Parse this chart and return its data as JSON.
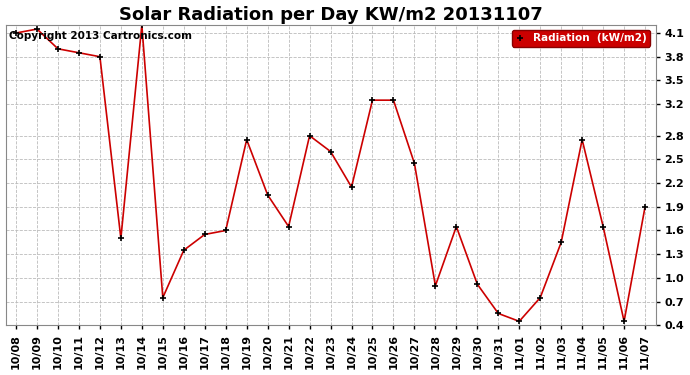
{
  "title": "Solar Radiation per Day KW/m2 20131107",
  "copyright": "Copyright 2013 Cartronics.com",
  "legend_label": "Radiation  (kW/m2)",
  "dates": [
    "10/08",
    "10/09",
    "10/10",
    "10/11",
    "10/12",
    "10/13",
    "10/14",
    "10/15",
    "10/16",
    "10/17",
    "10/18",
    "10/19",
    "10/20",
    "10/21",
    "10/22",
    "10/23",
    "10/24",
    "10/25",
    "10/26",
    "10/27",
    "10/28",
    "10/29",
    "10/30",
    "10/31",
    "11/01",
    "11/02",
    "11/03",
    "11/04",
    "11/05",
    "11/06",
    "11/07"
  ],
  "values": [
    4.1,
    4.15,
    3.9,
    3.85,
    3.8,
    1.5,
    4.2,
    0.75,
    1.35,
    1.55,
    1.6,
    2.75,
    2.05,
    1.65,
    2.8,
    2.6,
    2.15,
    3.25,
    3.25,
    2.45,
    0.9,
    1.65,
    0.92,
    0.55,
    0.45,
    0.75,
    1.45,
    2.75,
    1.65,
    0.45,
    1.9
  ],
  "ylim": [
    0.4,
    4.2
  ],
  "yticks": [
    0.4,
    0.7,
    1.0,
    1.3,
    1.6,
    1.9,
    2.2,
    2.5,
    2.8,
    3.2,
    3.5,
    3.8,
    4.1
  ],
  "line_color": "#cc0000",
  "marker_color": "#000000",
  "bg_color": "#ffffff",
  "plot_bg_color": "#ffffff",
  "grid_color": "#bbbbbb",
  "legend_bg": "#cc0000",
  "legend_text_color": "#ffffff",
  "title_fontsize": 13,
  "tick_fontsize": 8,
  "copyright_fontsize": 7.5
}
